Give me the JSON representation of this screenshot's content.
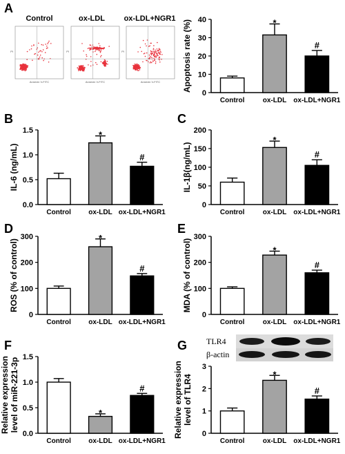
{
  "panel_letters": [
    "A",
    "B",
    "C",
    "D",
    "E",
    "F",
    "G"
  ],
  "flow": {
    "headers": [
      "Control",
      "ox-LDL",
      "ox-LDL+NGR1"
    ],
    "axis_y": "PI",
    "axis_x": "Annexin V-FITC"
  },
  "blot": {
    "labels": [
      "TLR4",
      "β-actin"
    ]
  },
  "chart_data": [
    {
      "id": "A",
      "type": "bar",
      "categories": [
        "Control",
        "ox-LDL",
        "ox-LDL+NGR1"
      ],
      "values": [
        8,
        31.5,
        20
      ],
      "errors": [
        1,
        6,
        3
      ],
      "marks": [
        "",
        "*",
        "#"
      ],
      "ylabel": "Apoptosis rate (%)",
      "ylim": [
        0,
        40
      ],
      "yticks": [
        "0",
        "10",
        "20",
        "30",
        "40"
      ]
    },
    {
      "id": "B",
      "type": "bar",
      "categories": [
        "Control",
        "ox-LDL",
        "ox-LDL+NGR1"
      ],
      "values": [
        0.52,
        1.24,
        0.77
      ],
      "errors": [
        0.11,
        0.14,
        0.08
      ],
      "marks": [
        "",
        "*",
        "#"
      ],
      "ylabel": "IL-6 (ng/mL)",
      "ylim": [
        0,
        1.5
      ],
      "yticks": [
        "0.0",
        "0.5",
        "1.0",
        "1.5"
      ]
    },
    {
      "id": "C",
      "type": "bar",
      "categories": [
        "Control",
        "ox-LDL",
        "ox-LDL+NGR1"
      ],
      "values": [
        60,
        153,
        105
      ],
      "errors": [
        11,
        17,
        15
      ],
      "marks": [
        "",
        "*",
        "#"
      ],
      "ylabel": "IL-1β(ng/mL)",
      "ylim": [
        0,
        200
      ],
      "yticks": [
        "0",
        "50",
        "100",
        "150",
        "200"
      ]
    },
    {
      "id": "D",
      "type": "bar",
      "categories": [
        "Control",
        "ox-LDL",
        "ox-LDL+NGR1"
      ],
      "values": [
        100,
        260,
        148
      ],
      "errors": [
        9,
        30,
        9
      ],
      "marks": [
        "",
        "*",
        "#"
      ],
      "ylabel": "ROS (% of control)",
      "ylim": [
        0,
        300
      ],
      "yticks": [
        "0",
        "100",
        "200",
        "300"
      ]
    },
    {
      "id": "E",
      "type": "bar",
      "categories": [
        "Control",
        "ox-LDL",
        "ox-LDL+NGR1"
      ],
      "values": [
        100,
        228,
        160
      ],
      "errors": [
        6,
        15,
        10
      ],
      "marks": [
        "",
        "*",
        "#"
      ],
      "ylabel": "MDA (% of control)",
      "ylim": [
        0,
        300
      ],
      "yticks": [
        "0",
        "100",
        "200",
        "300"
      ]
    },
    {
      "id": "F",
      "type": "bar",
      "categories": [
        "Control",
        "ox-LDL",
        "ox-LDL+NGR1"
      ],
      "values": [
        1.0,
        0.33,
        0.74
      ],
      "errors": [
        0.07,
        0.05,
        0.04
      ],
      "marks": [
        "",
        "*",
        "#"
      ],
      "ylabel": [
        "Relative expression",
        "level of miR-221-3p"
      ],
      "ylim": [
        0,
        1.5
      ],
      "yticks": [
        "0.0",
        "0.5",
        "1.0",
        "1.5"
      ]
    },
    {
      "id": "G",
      "type": "bar",
      "categories": [
        "Control",
        "ox-LDL",
        "ox-LDL+NGR1"
      ],
      "values": [
        1.0,
        2.37,
        1.53
      ],
      "errors": [
        0.13,
        0.22,
        0.14
      ],
      "marks": [
        "",
        "*",
        "#"
      ],
      "ylabel": [
        "Relative expression",
        "level of TLR4"
      ],
      "ylim": [
        0,
        3
      ],
      "yticks": [
        "0",
        "1",
        "2",
        "3"
      ]
    }
  ],
  "colors": {
    "control": "#ffffff",
    "oxldl": "#a3a3a3",
    "ngr1": "#000000",
    "dots": "#e8323c"
  }
}
